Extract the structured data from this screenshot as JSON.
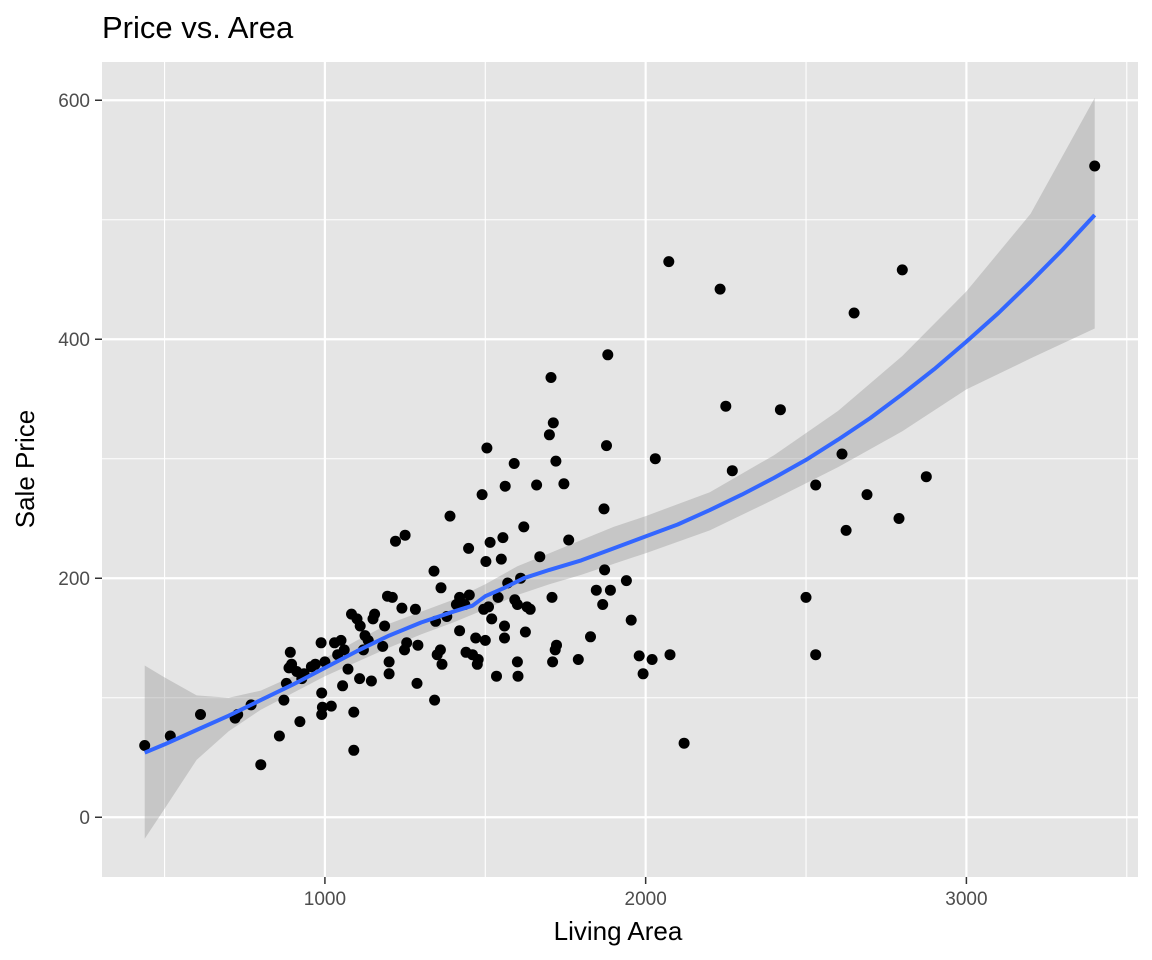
{
  "chart_data": {
    "type": "scatter",
    "title": "Price vs. Area",
    "xlabel": "Living Area",
    "ylabel": "Sale Price",
    "xlim": [
      305,
      3535
    ],
    "ylim": [
      -50,
      632
    ],
    "x_ticks": [
      1000,
      2000,
      3000
    ],
    "x_minor_ticks": [
      500,
      1500,
      2500,
      3500
    ],
    "y_ticks": [
      0,
      200,
      400,
      600
    ],
    "y_minor_ticks": [
      100,
      300,
      500
    ],
    "grid": true,
    "colors": {
      "panel_background": "#e5e5e5",
      "grid_major": "#ffffff",
      "points": "#000000",
      "smooth_line": "#3366ff",
      "confidence_band": "#999999"
    },
    "points": [
      [
        438,
        60
      ],
      [
        518,
        68
      ],
      [
        612,
        86
      ],
      [
        720,
        83
      ],
      [
        728,
        86
      ],
      [
        770,
        94
      ],
      [
        800,
        44
      ],
      [
        858,
        68
      ],
      [
        872,
        98
      ],
      [
        880,
        112
      ],
      [
        888,
        125
      ],
      [
        892,
        138
      ],
      [
        896,
        128
      ],
      [
        912,
        122
      ],
      [
        922,
        80
      ],
      [
        928,
        116
      ],
      [
        935,
        120
      ],
      [
        958,
        126
      ],
      [
        970,
        128
      ],
      [
        988,
        146
      ],
      [
        990,
        104
      ],
      [
        990,
        86
      ],
      [
        992,
        92
      ],
      [
        1000,
        130
      ],
      [
        1020,
        93
      ],
      [
        1030,
        146
      ],
      [
        1040,
        136
      ],
      [
        1050,
        148
      ],
      [
        1055,
        110
      ],
      [
        1060,
        140
      ],
      [
        1072,
        124
      ],
      [
        1083,
        170
      ],
      [
        1090,
        56
      ],
      [
        1090,
        88
      ],
      [
        1100,
        166
      ],
      [
        1108,
        116
      ],
      [
        1110,
        160
      ],
      [
        1120,
        140
      ],
      [
        1125,
        152
      ],
      [
        1135,
        148
      ],
      [
        1145,
        114
      ],
      [
        1150,
        166
      ],
      [
        1155,
        170
      ],
      [
        1180,
        143
      ],
      [
        1186,
        160
      ],
      [
        1195,
        185
      ],
      [
        1200,
        130
      ],
      [
        1200,
        120
      ],
      [
        1210,
        184
      ],
      [
        1220,
        231
      ],
      [
        1240,
        175
      ],
      [
        1248,
        140
      ],
      [
        1250,
        236
      ],
      [
        1255,
        146
      ],
      [
        1282,
        174
      ],
      [
        1287,
        112
      ],
      [
        1290,
        144
      ],
      [
        1340,
        206
      ],
      [
        1342,
        98
      ],
      [
        1345,
        164
      ],
      [
        1350,
        136
      ],
      [
        1360,
        140
      ],
      [
        1362,
        192
      ],
      [
        1365,
        128
      ],
      [
        1380,
        168
      ],
      [
        1390,
        252
      ],
      [
        1410,
        178
      ],
      [
        1420,
        184
      ],
      [
        1420,
        156
      ],
      [
        1436,
        178
      ],
      [
        1440,
        138
      ],
      [
        1448,
        225
      ],
      [
        1450,
        186
      ],
      [
        1460,
        136
      ],
      [
        1470,
        150
      ],
      [
        1475,
        128
      ],
      [
        1478,
        132
      ],
      [
        1490,
        270
      ],
      [
        1495,
        174
      ],
      [
        1500,
        148
      ],
      [
        1502,
        214
      ],
      [
        1505,
        309
      ],
      [
        1510,
        176
      ],
      [
        1515,
        230
      ],
      [
        1520,
        166
      ],
      [
        1535,
        118
      ],
      [
        1540,
        184
      ],
      [
        1550,
        216
      ],
      [
        1555,
        234
      ],
      [
        1560,
        150
      ],
      [
        1560,
        160
      ],
      [
        1562,
        277
      ],
      [
        1570,
        196
      ],
      [
        1590,
        296
      ],
      [
        1592,
        182
      ],
      [
        1600,
        178
      ],
      [
        1600,
        130
      ],
      [
        1602,
        118
      ],
      [
        1610,
        200
      ],
      [
        1620,
        243
      ],
      [
        1625,
        155
      ],
      [
        1630,
        176
      ],
      [
        1640,
        174
      ],
      [
        1660,
        278
      ],
      [
        1670,
        218
      ],
      [
        1700,
        320
      ],
      [
        1705,
        368
      ],
      [
        1708,
        184
      ],
      [
        1710,
        130
      ],
      [
        1712,
        330
      ],
      [
        1718,
        140
      ],
      [
        1720,
        298
      ],
      [
        1722,
        144
      ],
      [
        1745,
        279
      ],
      [
        1760,
        232
      ],
      [
        1790,
        132
      ],
      [
        1828,
        151
      ],
      [
        1846,
        190
      ],
      [
        1866,
        178
      ],
      [
        1870,
        258
      ],
      [
        1872,
        207
      ],
      [
        1878,
        311
      ],
      [
        1882,
        387
      ],
      [
        1890,
        190
      ],
      [
        1940,
        198
      ],
      [
        1955,
        165
      ],
      [
        1980,
        135
      ],
      [
        1992,
        120
      ],
      [
        2020,
        132
      ],
      [
        2030,
        300
      ],
      [
        2072,
        465
      ],
      [
        2076,
        136
      ],
      [
        2120,
        62
      ],
      [
        2232,
        442
      ],
      [
        2250,
        344
      ],
      [
        2270,
        290
      ],
      [
        2420,
        341
      ],
      [
        2500,
        184
      ],
      [
        2530,
        136
      ],
      [
        2530,
        278
      ],
      [
        2612,
        304
      ],
      [
        2625,
        240
      ],
      [
        2650,
        422
      ],
      [
        2690,
        270
      ],
      [
        2790,
        250
      ],
      [
        2800,
        458
      ],
      [
        2875,
        285
      ],
      [
        3400,
        545
      ]
    ],
    "smooth_line": {
      "x": [
        438,
        500,
        600,
        700,
        800,
        900,
        1000,
        1100,
        1200,
        1300,
        1400,
        1460,
        1500,
        1560,
        1620,
        1700,
        1800,
        1900,
        2000,
        2100,
        2200,
        2300,
        2400,
        2500,
        2600,
        2700,
        2800,
        2900,
        3000,
        3100,
        3200,
        3300,
        3400
      ],
      "y": [
        54,
        61,
        73,
        85,
        98,
        111,
        125,
        139,
        152,
        163,
        172,
        177,
        185,
        192,
        200,
        207,
        215,
        225,
        235,
        245,
        257,
        270,
        284,
        299,
        316,
        334,
        354,
        375,
        398,
        422,
        448,
        475,
        504
      ]
    },
    "confidence_band": {
      "x": [
        438,
        500,
        600,
        700,
        800,
        900,
        1000,
        1100,
        1200,
        1300,
        1400,
        1500,
        1600,
        1700,
        1800,
        1900,
        2000,
        2200,
        2400,
        2600,
        2800,
        3000,
        3200,
        3400
      ],
      "upper": [
        127,
        117,
        102,
        100,
        106,
        118,
        133,
        148,
        162,
        172,
        182,
        195,
        210,
        221,
        232,
        243,
        252,
        272,
        303,
        340,
        386,
        440,
        505,
        602
      ],
      "lower": [
        -18,
        7,
        48,
        72,
        90,
        104,
        118,
        130,
        142,
        153,
        163,
        174,
        186,
        195,
        203,
        212,
        221,
        240,
        266,
        293,
        323,
        358,
        384,
        409
      ]
    }
  }
}
